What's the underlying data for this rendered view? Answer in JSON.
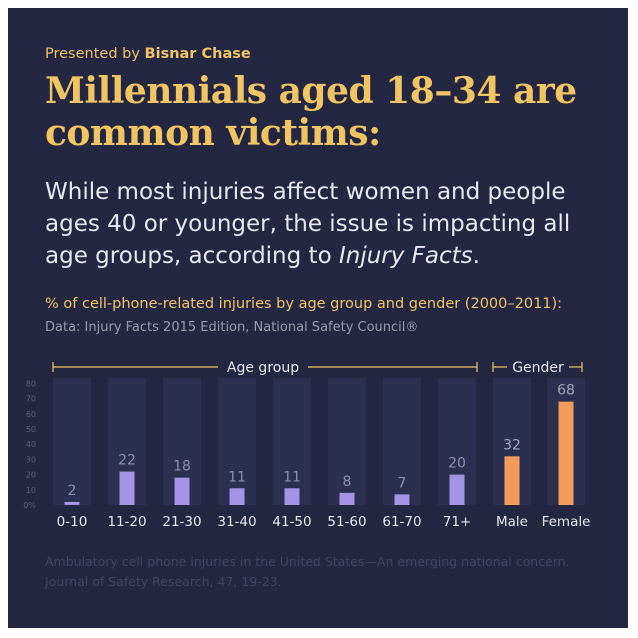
{
  "header": {
    "presented_prefix": "Presented by ",
    "presented_brand": "Bisnar Chase",
    "headline": "Millennials aged 18–34 are common victims:",
    "subtitle_main": "While most injuries affect women and people ages 40 or younger, the issue is impacting all age groups, according to ",
    "subtitle_italic": "Injury Facts",
    "subtitle_end": "."
  },
  "caption": {
    "title": "% of cell-phone-related injuries by age group and gender (2000–2011):",
    "source": "Data: Injury Facts 2015 Edition, National Safety Council®"
  },
  "footer": {
    "reference": "Ambulatory cell phone injuries in the United States—An emerging national concern. Journal of Safety Research, 47, 19-23."
  },
  "colors": {
    "background": "#232741",
    "accent": "#f2c462",
    "age_bar": "#a594e6",
    "gender_bar": "#f49a5b",
    "column_bg": "#2c3050"
  },
  "chart_data": {
    "type": "bar",
    "title": "% of cell-phone-related injuries by age group and gender (2000–2011):",
    "ylim": [
      0,
      80
    ],
    "yticks": [
      "0%",
      "10",
      "20",
      "30",
      "40",
      "50",
      "60",
      "70",
      "80"
    ],
    "groups": [
      {
        "label": "Age group",
        "categories": [
          "0-10",
          "11-20",
          "21-30",
          "31-40",
          "41-50",
          "51-60",
          "61-70",
          "71+"
        ],
        "values": [
          2,
          22,
          18,
          11,
          11,
          8,
          7,
          20
        ]
      },
      {
        "label": "Gender",
        "categories": [
          "Male",
          "Female"
        ],
        "values": [
          32,
          68
        ]
      }
    ]
  }
}
